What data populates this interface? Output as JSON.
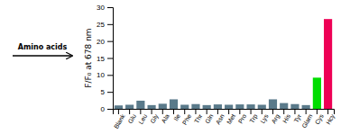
{
  "chart_data": {
    "type": "bar",
    "categories": [
      "Blank",
      "Glu",
      "Leu",
      "Gly",
      "Ala",
      "Ile",
      "Phe",
      "Thr",
      "Gln",
      "Asn",
      "Met",
      "Pro",
      "Trp",
      "Lys",
      "Arg",
      "His",
      "Tyr",
      "Glam",
      "Cys",
      "Hcy"
    ],
    "values": [
      1.0,
      1.2,
      2.4,
      1.1,
      1.5,
      2.8,
      1.2,
      1.4,
      1.1,
      1.3,
      1.2,
      1.3,
      1.3,
      1.2,
      2.8,
      1.7,
      1.4,
      1.1,
      9.2,
      26.5
    ],
    "colors": [
      "#5a7a8a",
      "#5a7a8a",
      "#5a7a8a",
      "#5a7a8a",
      "#5a7a8a",
      "#5a7a8a",
      "#5a7a8a",
      "#5a7a8a",
      "#5a7a8a",
      "#5a7a8a",
      "#5a7a8a",
      "#5a7a8a",
      "#5a7a8a",
      "#5a7a8a",
      "#5a7a8a",
      "#5a7a8a",
      "#5a7a8a",
      "#5a7a8a",
      "#00dd00",
      "#ee0055"
    ],
    "ylabel": "F/F₀ at 678 nm",
    "ylim": [
      0,
      30
    ],
    "yticks": [
      0,
      5,
      10,
      15,
      20,
      25,
      30
    ],
    "grid": false,
    "annotations": [
      "Amino acids"
    ]
  }
}
